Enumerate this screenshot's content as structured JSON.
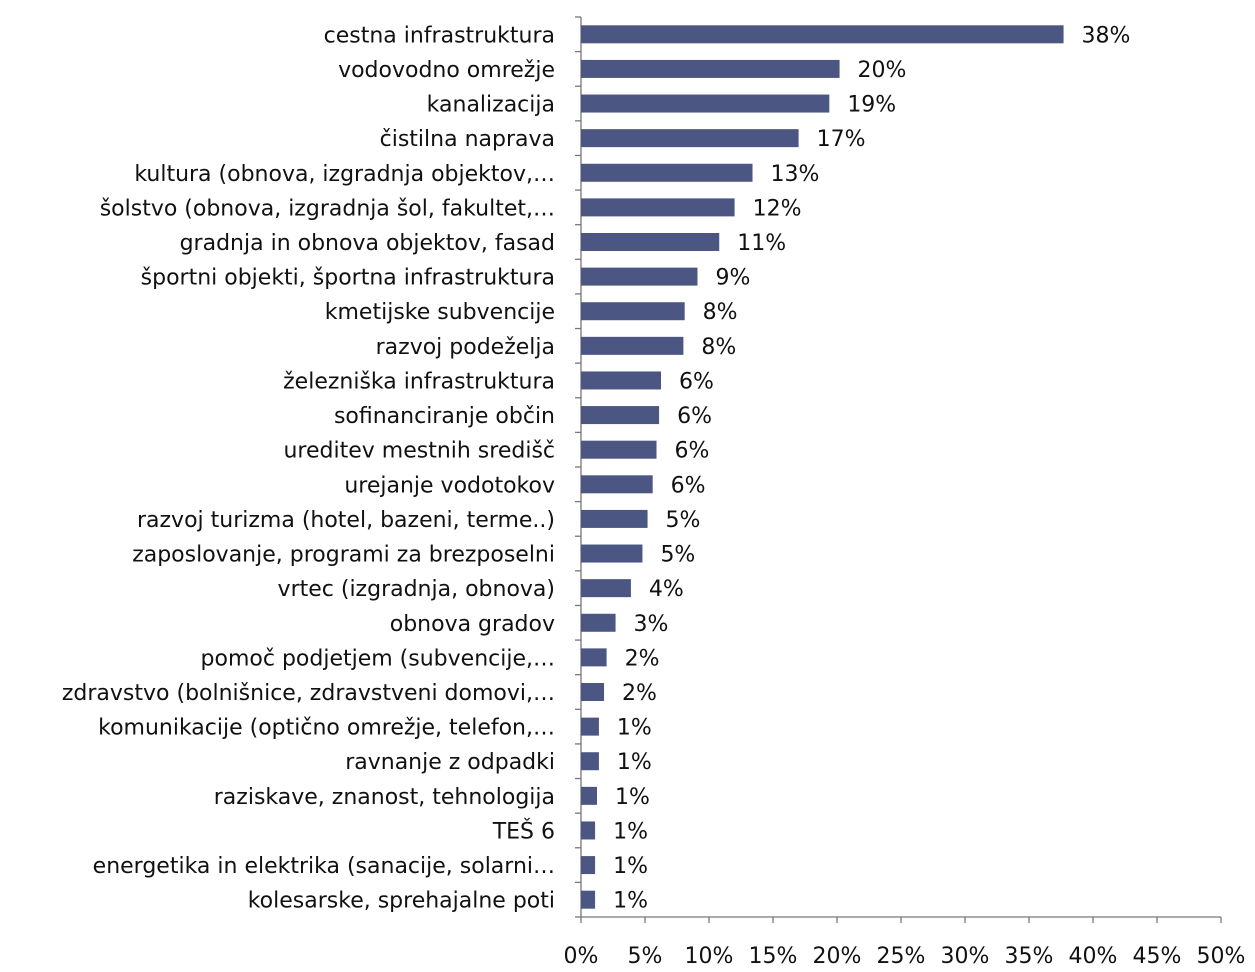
{
  "chart_data": {
    "type": "hbar",
    "color": "#4b5682",
    "categories": [
      "cestna infrastruktura",
      "vodovodno omrežje",
      "kanalizacija",
      "čistilna naprava",
      "kultura (obnova, izgradnja objektov,…",
      "šolstvo (obnova, izgradnja šol, fakultet,…",
      "gradnja in obnova objektov, fasad",
      "športni objekti, športna infrastruktura",
      "kmetijske subvencije",
      "razvoj podeželja",
      "železniška infrastruktura",
      "sofinanciranje občin",
      "ureditev mestnih središč",
      "urejanje vodotokov",
      "razvoj turizma (hotel, bazeni, terme..)",
      "zaposlovanje, programi za brezposelni",
      "vrtec (izgradnja, obnova)",
      "obnova gradov",
      "pomoč podjetjem (subvencije,…",
      "zdravstvo (bolnišnice, zdravstveni domovi,…",
      "komunikacije (optično omrežje, telefon,…",
      "ravnanje z odpadki",
      "raziskave, znanost, tehnologija",
      "TEŠ 6",
      "energetika in elektrika (sanacije, solarni…",
      "kolesarske, sprehajalne poti"
    ],
    "values": [
      37.7,
      20.2,
      19.4,
      17.0,
      13.4,
      12.0,
      10.8,
      9.1,
      8.1,
      8.0,
      6.25,
      6.1,
      5.9,
      5.6,
      5.2,
      4.8,
      3.9,
      2.7,
      2.0,
      1.8,
      1.4,
      1.4,
      1.25,
      1.1,
      1.1,
      1.1
    ],
    "value_labels": [
      "38%",
      "20%",
      "19%",
      "17%",
      "13%",
      "12%",
      "11%",
      "9%",
      "8%",
      "8%",
      "6%",
      "6%",
      "6%",
      "6%",
      "5%",
      "5%",
      "4%",
      "3%",
      "2%",
      "2%",
      "1%",
      "1%",
      "1%",
      "1%",
      "1%",
      "1%"
    ],
    "xlim": [
      0,
      50
    ],
    "xticks": [
      {
        "value": 0,
        "label": "0%"
      },
      {
        "value": 5,
        "label": "5%"
      },
      {
        "value": 10,
        "label": "10%"
      },
      {
        "value": 15,
        "label": "15%"
      },
      {
        "value": 20,
        "label": "20%"
      },
      {
        "value": 25,
        "label": "25%"
      },
      {
        "value": 30,
        "label": "30%"
      },
      {
        "value": 35,
        "label": "35%"
      },
      {
        "value": 40,
        "label": "40%"
      },
      {
        "value": 45,
        "label": "45%"
      },
      {
        "value": 50,
        "label": "50%"
      }
    ],
    "grid": false
  }
}
